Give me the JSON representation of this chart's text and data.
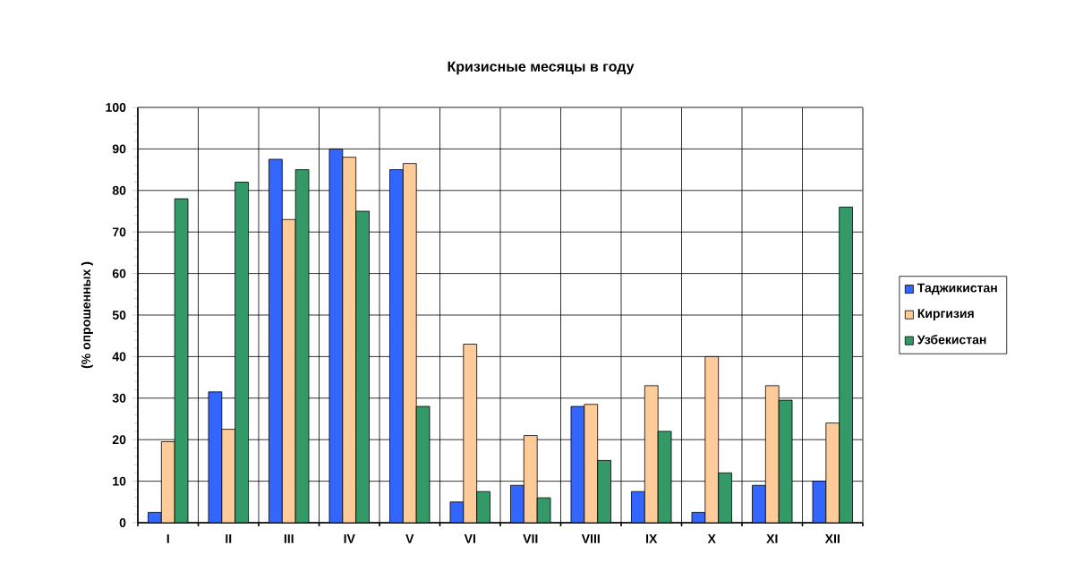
{
  "chart_data": {
    "type": "bar",
    "title": "Кризисные месяцы в году",
    "ylabel": "(% опрошенных )",
    "categories": [
      "I",
      "II",
      "III",
      "IV",
      "V",
      "VI",
      "VII",
      "VIII",
      "IX",
      "X",
      "XI",
      "XII"
    ],
    "series": [
      {
        "name": "Таджикистан",
        "color": "#3366ff",
        "values": [
          2.5,
          31.5,
          87.5,
          90,
          85,
          5,
          9,
          28,
          7.5,
          2.5,
          9,
          10
        ]
      },
      {
        "name": "Киргизия",
        "color": "#ffcc99",
        "values": [
          19.5,
          22.5,
          73,
          88,
          86.5,
          43,
          21,
          28.5,
          33,
          40,
          33,
          24
        ]
      },
      {
        "name": "Узбекистан",
        "color": "#339966",
        "values": [
          78,
          82,
          85,
          75,
          28,
          7.5,
          6,
          15,
          22,
          12,
          29.5,
          76
        ]
      }
    ],
    "ylim": [
      0,
      100
    ],
    "yticks": [
      0,
      10,
      20,
      30,
      40,
      50,
      60,
      70,
      80,
      90,
      100
    ],
    "grid": true,
    "legend": "right"
  }
}
